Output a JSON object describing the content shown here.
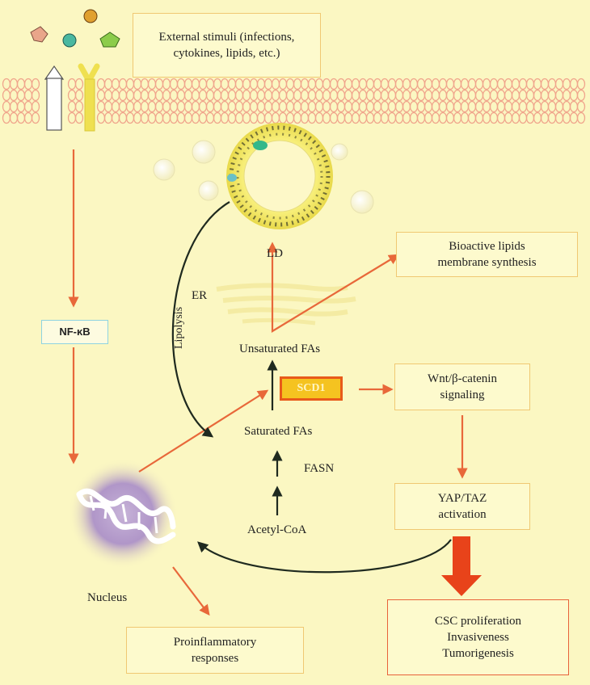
{
  "external_stimuli": {
    "lines": [
      "External stimuli (infections,",
      "cytokines, lipids, etc.)"
    ]
  },
  "nfkb": "NF-κB",
  "nucleus": "Nucleus",
  "proinflammatory": {
    "lines": [
      "Proinflammatory",
      "responses"
    ]
  },
  "ld": "LD",
  "er": "ER",
  "lipolysis": "Lipolysis",
  "bioactive": {
    "lines": [
      "Bioactive lipids",
      "membrane synthesis"
    ]
  },
  "unsaturated": "Unsaturated FAs",
  "scd1": "SCD1",
  "saturated": "Saturated FAs",
  "fasn": "FASN",
  "acetyl": "Acetyl-CoA",
  "wnt": {
    "lines": [
      "Wnt/β-catenin",
      "signaling"
    ]
  },
  "yap": {
    "lines": [
      "YAP/TAZ",
      "activation"
    ]
  },
  "csc": {
    "lines": [
      "CSC proliferation",
      "Invasiveness",
      "Tumorigenesis"
    ]
  },
  "colors": {
    "background": "#fbf7c2",
    "orange_arrow": "#e8683a",
    "dark_arrow": "#1f2a1f",
    "membrane": "#f0a58c",
    "box_border": "#f0c872",
    "red_border": "#e8623a",
    "scd1_fill": "#f5c320"
  }
}
